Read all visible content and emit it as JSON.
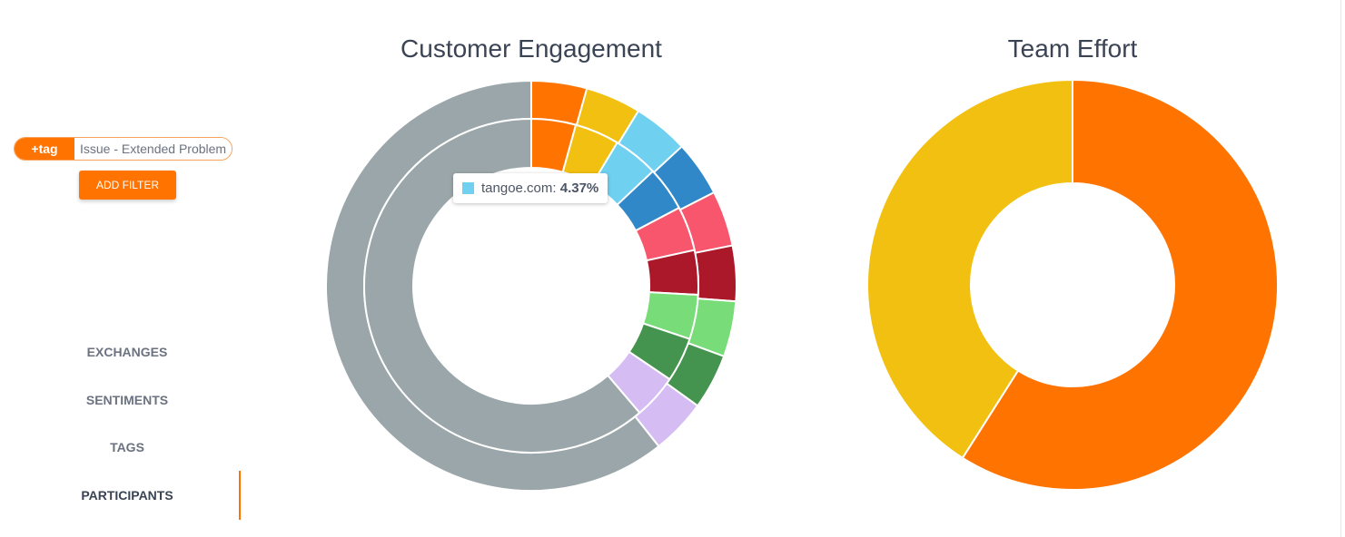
{
  "filter": {
    "tag_label": "+tag",
    "tag_value": "Issue - Extended Problem",
    "add_filter": "ADD FILTER"
  },
  "nav": [
    {
      "label": "EXCHANGES"
    },
    {
      "label": "SENTIMENTS"
    },
    {
      "label": "TAGS"
    },
    {
      "label": "PARTICIPANTS",
      "active": true
    }
  ],
  "tooltip": {
    "label": "tangoe.com:",
    "value": "4.37%",
    "color": "#70d0f0"
  },
  "chart_data": [
    {
      "type": "pie",
      "title": "Customer Engagement",
      "rings": [
        {
          "name": "outer",
          "values": [
            4.37,
            4.37,
            4.37,
            4.37,
            4.37,
            4.37,
            4.37,
            4.37,
            4.37,
            60.67
          ],
          "colors": [
            "#ff7300",
            "#f2c010",
            "#70d0f0",
            "#3088c8",
            "#f8566d",
            "#aa182a",
            "#78dc78",
            "#44934e",
            "#d5bcf2",
            "#9aa6a9"
          ]
        },
        {
          "name": "inner",
          "values": [
            4.3,
            4.3,
            4.37,
            4.3,
            4.3,
            4.3,
            4.3,
            4.3,
            4.3,
            61.23
          ],
          "colors": [
            "#ff7300",
            "#f2c010",
            "#70d0f0",
            "#3088c8",
            "#f8566d",
            "#aa182a",
            "#78dc78",
            "#44934e",
            "#d5bcf2",
            "#9aa6a9"
          ]
        }
      ]
    },
    {
      "type": "pie",
      "title": "Team Effort",
      "values": [
        59,
        41
      ],
      "colors": [
        "#ff7300",
        "#f2c010"
      ]
    }
  ]
}
